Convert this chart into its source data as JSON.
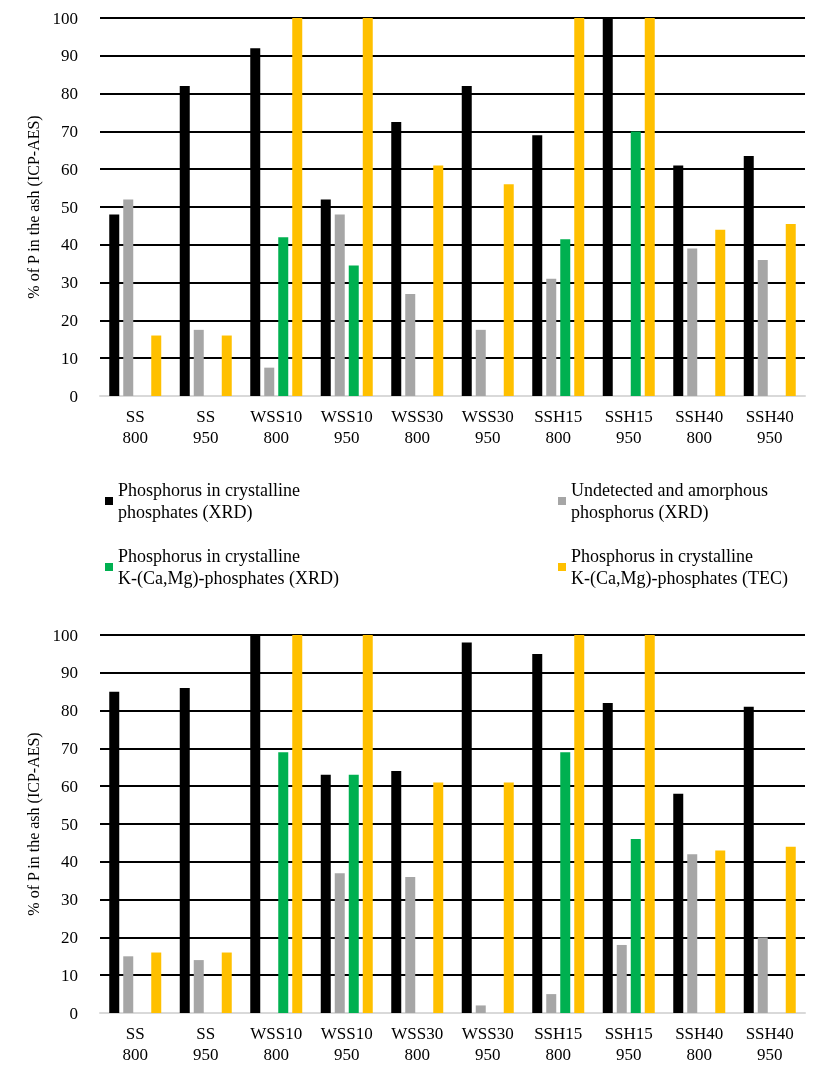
{
  "chart_data": [
    {
      "type": "bar",
      "ylabel": "% of P in the ash (ICP-AES)",
      "categories": [
        "SS 800",
        "SS 950",
        "WSS10 800",
        "WSS10 950",
        "WSS30 800",
        "WSS30 950",
        "SSH15 800",
        "SSH15 950",
        "SSH40 800",
        "SSH40 950"
      ],
      "series": [
        {
          "name": "Phosphorus in crystalline phosphates (XRD)",
          "color": "#000000",
          "values": [
            48,
            82,
            92,
            52,
            72.5,
            82,
            69,
            100,
            61,
            63.5
          ]
        },
        {
          "name": "Undetected and amorphous phosphorus (XRD)",
          "color": "#a6a6a6",
          "values": [
            52,
            17.5,
            7.5,
            48,
            27,
            17.5,
            31,
            null,
            39,
            36
          ]
        },
        {
          "name": "Phosphorus in crystalline K-(Ca,Mg)-phosphates (XRD)",
          "color": "#00b050",
          "values": [
            null,
            null,
            42,
            34.5,
            null,
            null,
            41.5,
            70,
            null,
            null
          ]
        },
        {
          "name": "Phosphorus in crystalline K-(Ca,Mg)-phosphates (TEC)",
          "color": "#ffc000",
          "values": [
            16,
            16,
            100,
            100,
            61,
            56,
            100,
            100,
            44,
            45.5
          ]
        }
      ],
      "ylim": [
        0,
        100
      ],
      "yticks": [
        0,
        10,
        20,
        30,
        40,
        50,
        60,
        70,
        80,
        90,
        100
      ],
      "grid": "y",
      "legend": "bottom"
    },
    {
      "type": "bar",
      "ylabel": "% of P in the ash (ICP-AES)",
      "categories": [
        "SS 800",
        "SS 950",
        "WSS10 800",
        "WSS10 950",
        "WSS30 800",
        "WSS30 950",
        "SSH15 800",
        "SSH15 950",
        "SSH40 800",
        "SSH40 950"
      ],
      "series": [
        {
          "color": "#000000",
          "values": [
            85,
            86,
            100,
            63,
            64,
            98,
            95,
            82,
            58,
            81
          ]
        },
        {
          "color": "#a6a6a6",
          "values": [
            15,
            14,
            null,
            37,
            36,
            2,
            5,
            18,
            42,
            20
          ]
        },
        {
          "color": "#00b050",
          "values": [
            null,
            null,
            69,
            63,
            null,
            null,
            69,
            46,
            null,
            null
          ]
        },
        {
          "color": "#ffc000",
          "values": [
            16,
            16,
            100,
            100,
            61,
            61,
            100,
            100,
            43,
            44
          ]
        }
      ],
      "ylim": [
        0,
        100
      ],
      "yticks": [
        0,
        10,
        20,
        30,
        40,
        50,
        60,
        70,
        80,
        90,
        100
      ],
      "grid": "y"
    }
  ]
}
